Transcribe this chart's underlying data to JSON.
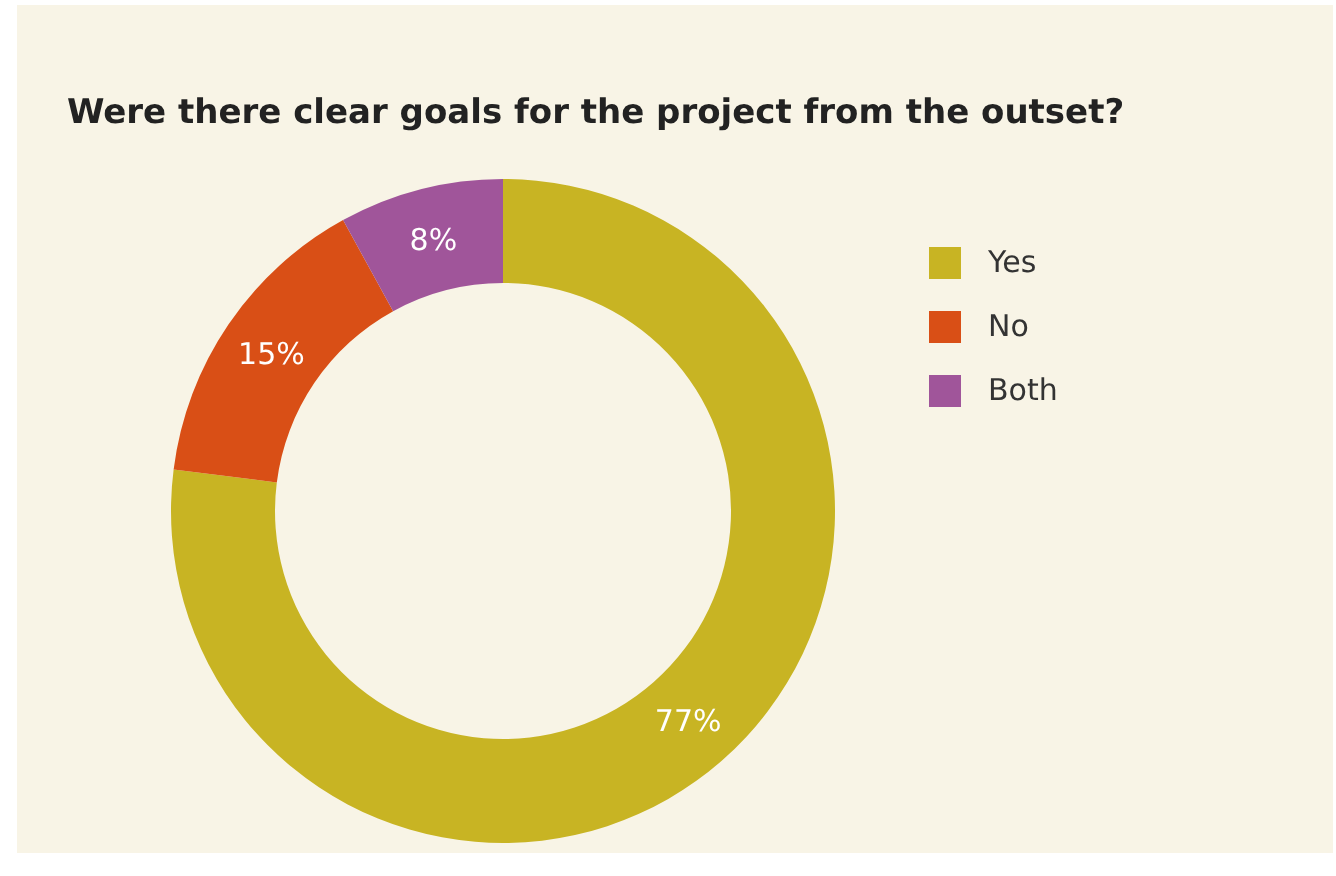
{
  "chart_data": {
    "type": "donut",
    "title": "Were there clear goals for the project from the outset?",
    "categories": [
      "Yes",
      "No",
      "Both"
    ],
    "values": [
      77,
      15,
      8
    ],
    "colors": [
      "#c8b423",
      "#d94f16",
      "#a0559a"
    ],
    "value_labels": [
      "77%",
      "15%",
      "8%"
    ],
    "legend": "right"
  }
}
